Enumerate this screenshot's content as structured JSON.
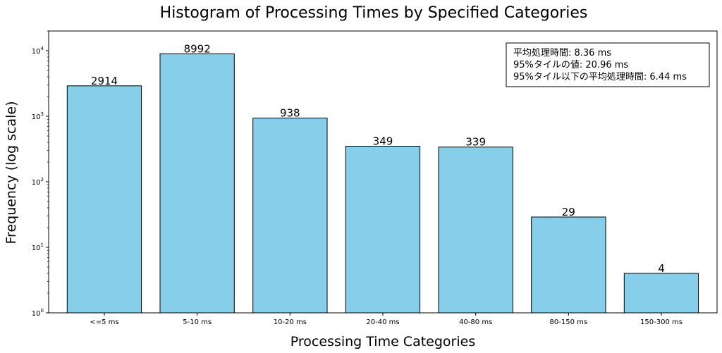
{
  "chart_data": {
    "type": "bar",
    "title": "Histogram of Processing Times by Specified Categories",
    "xlabel": "Processing Time Categories",
    "ylabel": "Frequency (log scale)",
    "yscale": "log",
    "ylim": [
      1,
      20000
    ],
    "categories": [
      "<=5 ms",
      "5-10 ms",
      "10-20 ms",
      "20-40 ms",
      "40-80 ms",
      "80-150 ms",
      "150-300 ms"
    ],
    "values": [
      2914,
      8992,
      938,
      349,
      339,
      29,
      4
    ],
    "data_labels": [
      "2914",
      "8992",
      "938",
      "349",
      "339",
      "29",
      "4"
    ],
    "y_ticks": [
      {
        "value": 1,
        "base": "10",
        "exp": "0"
      },
      {
        "value": 10,
        "base": "10",
        "exp": "1"
      },
      {
        "value": 100,
        "base": "10",
        "exp": "2"
      },
      {
        "value": 1000,
        "base": "10",
        "exp": "3"
      },
      {
        "value": 10000,
        "base": "10",
        "exp": "4"
      }
    ],
    "bar_color": "#87ceeb",
    "bar_edge_color": "#000000",
    "grid": false,
    "legend_placement": "top-right",
    "stats_box": [
      "平均処理時間: 8.36 ms",
      "95%タイルの値: 20.96 ms",
      "95%タイル以下の平均処理時間: 6.44 ms"
    ]
  }
}
